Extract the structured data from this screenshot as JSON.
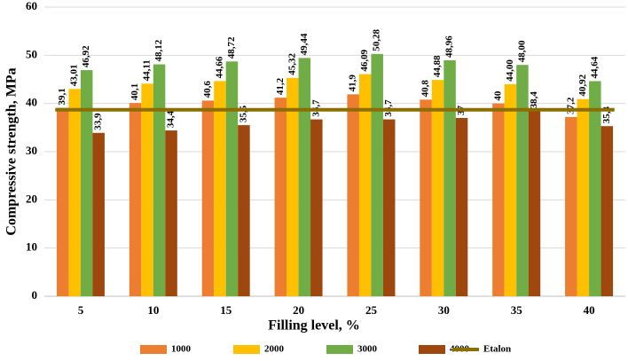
{
  "chart_data": {
    "type": "bar",
    "x_label": "Filling level, %",
    "y_label": "Compressive strength, MPa",
    "categories": [
      "5",
      "10",
      "15",
      "20",
      "25",
      "30",
      "35",
      "40"
    ],
    "series": [
      {
        "name": "1000",
        "color": "#ed7d31",
        "values": [
          39.1,
          40.1,
          40.6,
          41.2,
          41.9,
          40.8,
          40,
          37.2
        ],
        "value_labels": [
          "39,1",
          "40,1",
          "40,6",
          "41,2",
          "41,9",
          "40,8",
          "40",
          "37,2"
        ]
      },
      {
        "name": "2000",
        "color": "#ffc000",
        "values": [
          43.01,
          44.11,
          44.66,
          45.32,
          46.09,
          44.88,
          44.0,
          40.92
        ],
        "value_labels": [
          "43,01",
          "44,11",
          "44,66",
          "45,32",
          "46,09",
          "44,88",
          "44,00",
          "40,92"
        ]
      },
      {
        "name": "3000",
        "color": "#70ad47",
        "values": [
          46.92,
          48.12,
          48.72,
          49.44,
          50.28,
          48.96,
          48.0,
          44.64
        ],
        "value_labels": [
          "46,92",
          "48,12",
          "48,72",
          "49,44",
          "50,28",
          "48,96",
          "48,00",
          "44,64"
        ]
      },
      {
        "name": "4000",
        "color": "#9e480e",
        "values": [
          33.9,
          34.4,
          35.5,
          36.7,
          36.7,
          37,
          38.4,
          35.3
        ],
        "value_labels": [
          "33,9",
          "34,4",
          "35,5",
          "36,7",
          "36,7",
          "37",
          "38,4",
          "35,3"
        ]
      },
      {
        "name": "Etalon",
        "type": "line",
        "color": "#8c6d00",
        "values": [
          38.7,
          38.7,
          38.7,
          38.7,
          38.7,
          38.7,
          38.7,
          38.7
        ]
      }
    ],
    "ylim": [
      0,
      60
    ],
    "yticks": [
      0,
      10,
      20,
      30,
      40,
      50,
      60
    ],
    "grid": true,
    "legend": "bottom"
  }
}
